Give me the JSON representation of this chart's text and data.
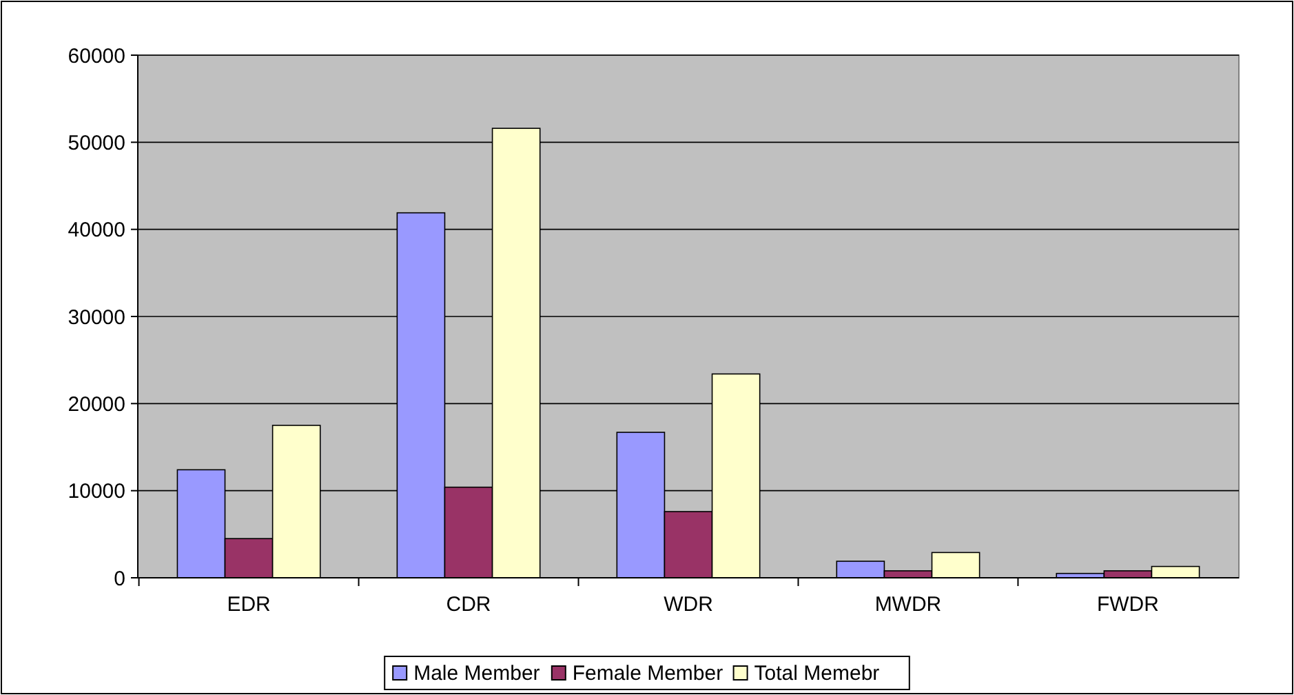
{
  "chart_data": {
    "type": "bar",
    "categories": [
      "EDR",
      "CDR",
      "WDR",
      "MWDR",
      "FWDR"
    ],
    "series": [
      {
        "name": "Male Member",
        "color": "#9999ff",
        "values": [
          12400,
          41900,
          16700,
          1900,
          500
        ]
      },
      {
        "name": "Female Member",
        "color": "#993366",
        "values": [
          4500,
          10400,
          7600,
          800,
          800
        ]
      },
      {
        "name": "Total Memebr",
        "color": "#ffffcc",
        "values": [
          17500,
          51600,
          23400,
          2900,
          1300
        ]
      }
    ],
    "ylim": [
      0,
      60000
    ],
    "yticks": [
      0,
      10000,
      20000,
      30000,
      40000,
      50000,
      60000
    ],
    "grid": "y",
    "legend": "bottom"
  }
}
